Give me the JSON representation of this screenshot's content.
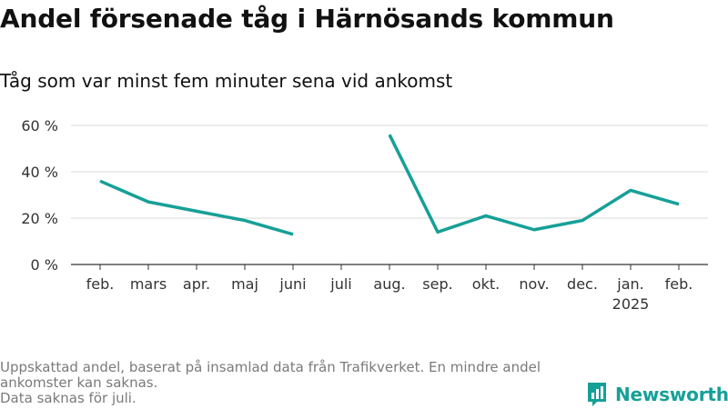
{
  "header": {
    "title": "Andel försenade tåg i Härnösands kommun",
    "subtitle": "Tåg som var minst fem minuter sena vid ankomst"
  },
  "footer": {
    "line1": "Uppskattad andel, baserat på insamlad data från Trafikverket. En mindre andel ankomster kan saknas.",
    "line2": "Data saknas för juli."
  },
  "brand": {
    "name": "Newsworthy",
    "logo_icon": "newsworthy-bar-chart-logo-icon",
    "color": "#15a097"
  },
  "colors": {
    "line": "#16a097",
    "grid": "#d9d9d9",
    "axis": "#333333"
  },
  "chart_data": {
    "type": "line",
    "title": "Andel försenade tåg i Härnösands kommun",
    "subtitle": "Tåg som var minst fem minuter sena vid ankomst",
    "categories": [
      "feb.",
      "mars",
      "apr.",
      "maj",
      "juni",
      "juli",
      "aug.",
      "sep.",
      "okt.",
      "nov.",
      "dec.",
      "jan.",
      "feb."
    ],
    "category_sublabels": [
      "",
      "",
      "",
      "",
      "",
      "",
      "",
      "",
      "",
      "",
      "",
      "2025",
      ""
    ],
    "series": [
      {
        "values": [
          36,
          27,
          23,
          19,
          13,
          null,
          56,
          14,
          21,
          15,
          19,
          32,
          26
        ]
      }
    ],
    "y_unit": "%",
    "ylim": [
      0,
      60
    ],
    "yticks": [
      0,
      20,
      40,
      60
    ],
    "ytick_labels": [
      "0 %",
      "20 %",
      "40 %",
      "60 %"
    ],
    "grid": true,
    "legend": "none"
  }
}
